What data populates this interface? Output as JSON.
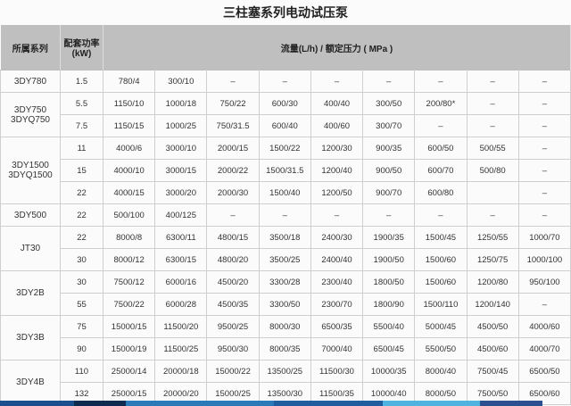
{
  "title": "三柱塞系列电动试压泵",
  "header": {
    "series": "所属系列",
    "power_line1": "配套功率",
    "power_line2": "(kW)",
    "flow": "流量(L/h) / 额定压力 ( MPa )"
  },
  "groups": [
    {
      "series": [
        "3DY780"
      ],
      "rows": [
        {
          "power": "1.5",
          "values": [
            "780/4",
            "300/10",
            "–",
            "–",
            "–",
            "–",
            "–",
            "–",
            "–"
          ]
        }
      ]
    },
    {
      "series": [
        "3DY750",
        "3DYQ750"
      ],
      "rows": [
        {
          "power": "5.5",
          "values": [
            "1150/10",
            "1000/18",
            "750/22",
            "600/30",
            "400/40",
            "300/50",
            "200/80*",
            "–",
            "–"
          ]
        },
        {
          "power": "7.5",
          "values": [
            "1150/15",
            "1000/25",
            "750/31.5",
            "600/40",
            "400/60",
            "300/70",
            "–",
            "–",
            "–"
          ]
        }
      ]
    },
    {
      "series": [
        "3DY1500",
        "3DYQ1500"
      ],
      "rows": [
        {
          "power": "11",
          "values": [
            "4000/6",
            "3000/10",
            "2000/15",
            "1500/22",
            "1200/30",
            "900/35",
            "600/50",
            "500/55",
            "–"
          ]
        },
        {
          "power": "15",
          "values": [
            "4000/10",
            "3000/15",
            "2000/22",
            "1500/31.5",
            "1200/40",
            "900/50",
            "600/70",
            "500/80",
            "–"
          ]
        },
        {
          "power": "22",
          "values": [
            "4000/15",
            "3000/20",
            "2000/30",
            "1500/40",
            "1200/50",
            "900/70",
            "600/80",
            "",
            "–"
          ]
        }
      ]
    },
    {
      "series": [
        "3DY500"
      ],
      "rows": [
        {
          "power": "22",
          "values": [
            "500/100",
            "400/125",
            "–",
            "–",
            "–",
            "–",
            "–",
            "–",
            "–"
          ]
        }
      ]
    },
    {
      "series": [
        "JT30"
      ],
      "rows": [
        {
          "power": "22",
          "values": [
            "8000/8",
            "6300/11",
            "4800/15",
            "3500/18",
            "2400/30",
            "1900/35",
            "1500/45",
            "1250/55",
            "1000/70"
          ]
        },
        {
          "power": "30",
          "values": [
            "8000/12",
            "6300/15",
            "4800/20",
            "3500/25",
            "2400/40",
            "1900/50",
            "1500/60",
            "1250/75",
            "1000/100"
          ]
        }
      ]
    },
    {
      "series": [
        "3DY2B"
      ],
      "rows": [
        {
          "power": "30",
          "values": [
            "7500/12",
            "6000/16",
            "4500/20",
            "3300/28",
            "2300/40",
            "1800/50",
            "1500/60",
            "1200/80",
            "950/100"
          ]
        },
        {
          "power": "55",
          "values": [
            "7500/22",
            "6000/28",
            "4500/35",
            "3300/50",
            "2300/70",
            "1800/90",
            "1500/110",
            "1200/140",
            "–"
          ]
        }
      ]
    },
    {
      "series": [
        "3DY3B"
      ],
      "rows": [
        {
          "power": "75",
          "values": [
            "15000/15",
            "11500/20",
            "9500/25",
            "8000/30",
            "6500/35",
            "5500/40",
            "5000/45",
            "4500/50",
            "4000/60"
          ]
        },
        {
          "power": "90",
          "values": [
            "15000/19",
            "11500/25",
            "9500/30",
            "8000/35",
            "7000/40",
            "6500/45",
            "5500/50",
            "4500/60",
            "4000/70"
          ]
        }
      ]
    },
    {
      "series": [
        "3DY4B"
      ],
      "rows": [
        {
          "power": "110",
          "values": [
            "25000/14",
            "20000/18",
            "15000/22",
            "13500/25",
            "11500/30",
            "10000/35",
            "8000/40",
            "7500/45",
            "6500/50"
          ]
        },
        {
          "power": "132",
          "values": [
            "25000/15",
            "20000/20",
            "15000/25",
            "13500/30",
            "11500/35",
            "10000/40",
            "8000/50",
            "7500/50",
            "6500/60"
          ]
        }
      ]
    }
  ],
  "colors": {
    "header_bg": "#bfbfbf",
    "bar": [
      "#1a4e8c",
      "#0d2a4f",
      "#2a79b8",
      "#1f5d9e",
      "#4fb3e0",
      "#2b4f8f"
    ]
  }
}
